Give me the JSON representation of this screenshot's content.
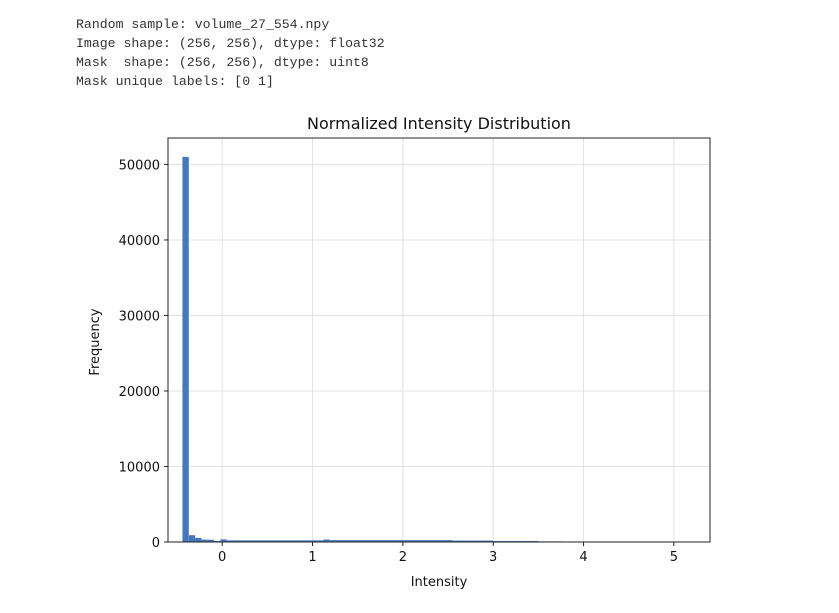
{
  "output_lines": [
    "Random sample: volume_27_554.npy",
    "Image shape: (256, 256), dtype: float32",
    "Mask  shape: (256, 256), dtype: uint8",
    "Mask unique labels: [0 1]"
  ],
  "colors": {
    "bar": "#4477bb",
    "grid": "#e3e3e3",
    "axes": "#222222"
  },
  "chart_data": {
    "type": "bar",
    "title": "Normalized Intensity Distribution",
    "xlabel": "Intensity",
    "ylabel": "Frequency",
    "grid": true,
    "xlim": [
      -0.6,
      5.4
    ],
    "ylim": [
      0,
      53500
    ],
    "xticks": [
      0,
      1,
      2,
      3,
      4,
      5
    ],
    "yticks": [
      0,
      10000,
      20000,
      30000,
      40000,
      50000
    ],
    "bin_edges": [
      -0.44,
      -0.37,
      -0.3,
      -0.23,
      -0.16,
      -0.09,
      -0.02,
      0.05,
      1.05,
      1.12,
      1.19,
      2.55,
      3.0,
      3.5,
      3.77,
      3.84,
      4.95,
      5.05,
      5.28
    ],
    "counts": [
      51000,
      900,
      550,
      320,
      300,
      140,
      350,
      220,
      220,
      330,
      250,
      190,
      130,
      80,
      0,
      70,
      0,
      60
    ]
  }
}
